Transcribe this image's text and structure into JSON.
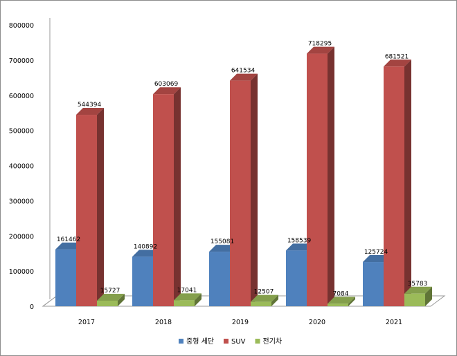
{
  "chart_data": {
    "type": "bar",
    "style": "3d-clustered-column",
    "categories": [
      "2017",
      "2018",
      "2019",
      "2020",
      "2021"
    ],
    "series": [
      {
        "name": "중형 세단",
        "color": "#4f81bd",
        "values": [
          161462,
          140892,
          155081,
          158539,
          125724
        ]
      },
      {
        "name": "SUV",
        "color": "#c0504d",
        "values": [
          544394,
          603069,
          641534,
          718295,
          681521
        ]
      },
      {
        "name": "전기차",
        "color": "#9bbb59",
        "values": [
          15727,
          17041,
          12507,
          7084,
          35783
        ]
      }
    ],
    "ylim": [
      0,
      800000
    ],
    "yticks": [
      "0",
      "100000",
      "200000",
      "300000",
      "400000",
      "500000",
      "600000",
      "700000",
      "800000"
    ],
    "grid": false,
    "legend_position": "bottom",
    "title": "",
    "xlabel": "",
    "ylabel": ""
  }
}
